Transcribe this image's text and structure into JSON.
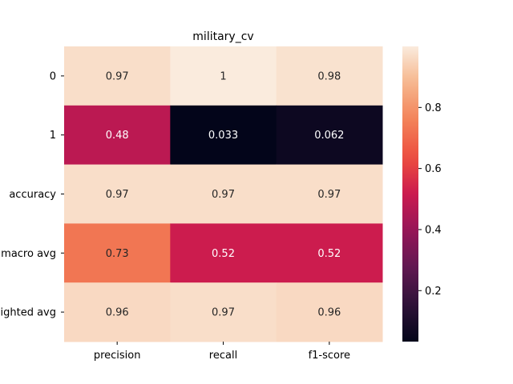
{
  "chart_data": {
    "type": "heatmap",
    "title": "military_cv",
    "xlabel": "",
    "ylabel": "",
    "columns": [
      "precision",
      "recall",
      "f1-score"
    ],
    "rows": [
      "0",
      "1",
      "accuracy",
      "macro avg",
      "weighted avg"
    ],
    "values": [
      [
        0.97,
        1.0,
        0.98
      ],
      [
        0.48,
        0.033,
        0.062
      ],
      [
        0.97,
        0.97,
        0.97
      ],
      [
        0.73,
        0.52,
        0.52
      ],
      [
        0.96,
        0.97,
        0.96
      ]
    ],
    "cell_labels": [
      [
        "0.97",
        "1",
        "0.98"
      ],
      [
        "0.48",
        "0.033",
        "0.062"
      ],
      [
        "0.97",
        "0.97",
        "0.97"
      ],
      [
        "0.73",
        "0.52",
        "0.52"
      ],
      [
        "0.96",
        "0.97",
        "0.96"
      ]
    ],
    "colormap": "rocket",
    "value_range": [
      0.033,
      1.0
    ],
    "colorbar_ticks": [
      0.2,
      0.4,
      0.6,
      0.8
    ],
    "colorbar_tick_labels": [
      "0.2",
      "0.4",
      "0.6",
      "0.8"
    ],
    "grid": false,
    "legend": "colorbar-right"
  }
}
